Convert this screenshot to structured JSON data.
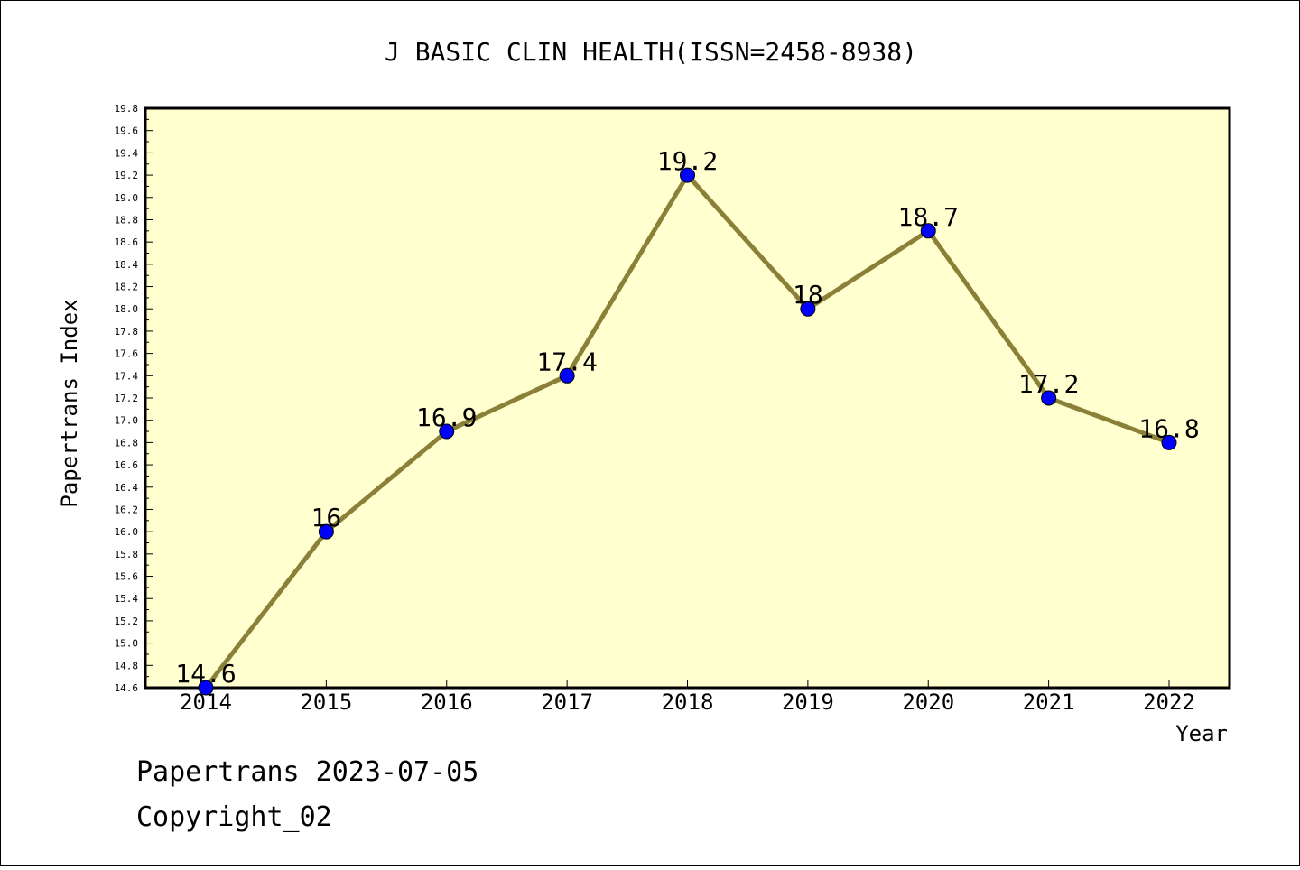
{
  "chart_data": {
    "type": "line",
    "title": "J BASIC CLIN HEALTH(ISSN=2458-8938)",
    "xlabel": "Year",
    "ylabel": "Papertrans Index",
    "categories": [
      "2014",
      "2015",
      "2016",
      "2017",
      "2018",
      "2019",
      "2020",
      "2021",
      "2022"
    ],
    "series": [
      {
        "values": [
          14.6,
          16,
          16.9,
          17.4,
          19.2,
          18,
          18.7,
          17.2,
          16.8
        ]
      }
    ],
    "data_labels": [
      "14.6",
      "16",
      "16.9",
      "17.4",
      "19.2",
      "18",
      "18.7",
      "17.2",
      "16.8"
    ],
    "ylim": [
      14.6,
      19.8
    ],
    "yticks": [
      "14.6",
      "14.8",
      "15.0",
      "15.2",
      "15.4",
      "15.6",
      "15.8",
      "16.0",
      "16.2",
      "16.4",
      "16.6",
      "16.8",
      "17.0",
      "17.2",
      "17.4",
      "17.6",
      "17.8",
      "18.0",
      "18.2",
      "18.4",
      "18.6",
      "18.8",
      "19.0",
      "19.2",
      "19.4",
      "19.6",
      "19.8"
    ],
    "grid": false,
    "colors": {
      "plot_bg": "#ffffd0",
      "line": "#8b8038",
      "marker": "#0000ff"
    }
  },
  "footer": {
    "line1": "Papertrans 2023-07-05",
    "line2": "Copyright_02"
  }
}
